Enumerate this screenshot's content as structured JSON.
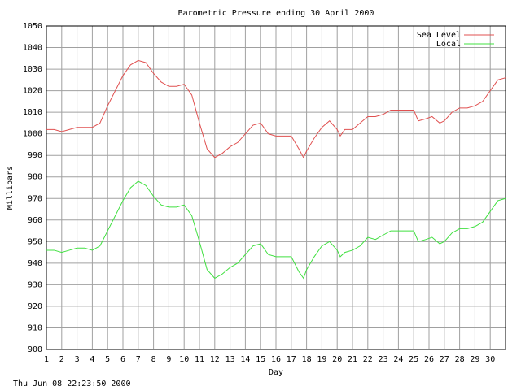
{
  "chart_data": {
    "type": "line",
    "title": "Barometric Pressure ending 30 April 2000",
    "x_label": "Day",
    "y_label": "Millibars",
    "x": [
      1,
      1.5,
      2,
      2.5,
      3,
      3.5,
      4,
      4.5,
      5,
      5.5,
      6,
      6.5,
      7,
      7.5,
      8,
      8.5,
      9,
      9.5,
      10,
      10.5,
      11,
      11.5,
      12,
      12.5,
      13,
      13.5,
      14,
      14.5,
      15,
      15.5,
      16,
      16.5,
      17,
      17.5,
      17.8,
      18,
      18.5,
      19,
      19.5,
      20,
      20.2,
      20.5,
      21,
      21.5,
      22,
      22.5,
      23,
      23.5,
      24,
      24.5,
      25,
      25.3,
      25.8,
      26.2,
      26.7,
      27,
      27.5,
      28,
      28.5,
      29,
      29.5,
      30,
      30.5,
      31
    ],
    "series": [
      {
        "name": "Sea Level",
        "color": "#e05050",
        "values": [
          1002,
          1002,
          1001,
          1002,
          1003,
          1003,
          1003,
          1005,
          1013,
          1020,
          1027,
          1032,
          1034,
          1033,
          1028,
          1024,
          1022,
          1022,
          1023,
          1018,
          1005,
          993,
          989,
          991,
          994,
          996,
          1000,
          1004,
          1005,
          1000,
          999,
          999,
          999,
          993,
          989,
          992,
          998,
          1003,
          1006,
          1002,
          999,
          1002,
          1002,
          1005,
          1008,
          1008,
          1009,
          1011,
          1011,
          1011,
          1011,
          1006,
          1007,
          1008,
          1005,
          1006,
          1010,
          1012,
          1012,
          1013,
          1015,
          1020,
          1025,
          1026
        ]
      },
      {
        "name": "Local",
        "color": "#40e040",
        "values": [
          946,
          946,
          945,
          946,
          947,
          947,
          946,
          948,
          955,
          962,
          969,
          975,
          978,
          976,
          971,
          967,
          966,
          966,
          967,
          962,
          950,
          937,
          933,
          935,
          938,
          940,
          944,
          948,
          949,
          944,
          943,
          943,
          943,
          936,
          933,
          937,
          943,
          948,
          950,
          946,
          943,
          945,
          946,
          948,
          952,
          951,
          953,
          955,
          955,
          955,
          955,
          950,
          951,
          952,
          949,
          950,
          954,
          956,
          956,
          957,
          959,
          964,
          969,
          970
        ]
      }
    ],
    "xlim": [
      1,
      31
    ],
    "xticks": [
      1,
      2,
      3,
      4,
      5,
      6,
      7,
      8,
      9,
      10,
      11,
      12,
      13,
      14,
      15,
      16,
      17,
      18,
      19,
      20,
      21,
      22,
      23,
      24,
      25,
      26,
      27,
      28,
      29,
      30
    ],
    "ylim": [
      900,
      1050
    ],
    "yticks": [
      900,
      910,
      920,
      930,
      940,
      950,
      960,
      970,
      980,
      990,
      1000,
      1010,
      1020,
      1030,
      1040,
      1050
    ],
    "grid": true,
    "legend": "top-right",
    "footer": "Thu Jun 08 22:23:50 2000"
  }
}
